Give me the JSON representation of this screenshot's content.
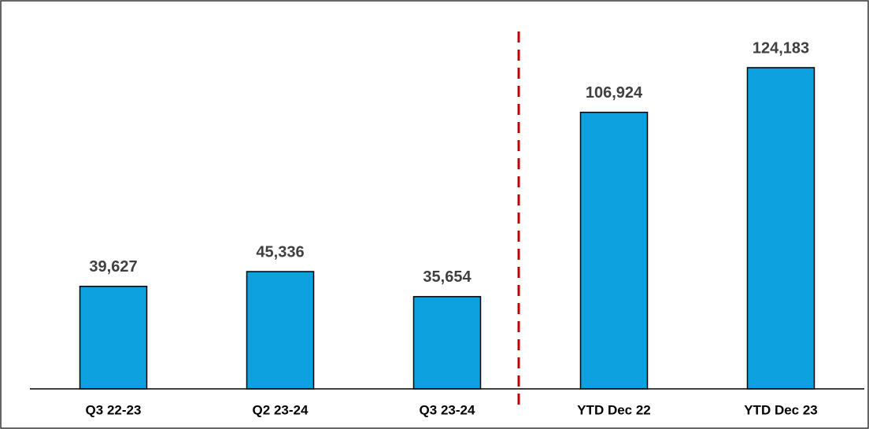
{
  "chart_data": {
    "type": "bar",
    "categories": [
      "Q3 22-23",
      "Q2 23-24",
      "Q3 23-24",
      "YTD Dec 22",
      "YTD Dec 23"
    ],
    "values": [
      39627,
      45336,
      35654,
      106924,
      124183
    ],
    "value_labels": [
      "39,627",
      "45,336",
      "35,654",
      "106,924",
      "124,183"
    ],
    "color": "#0ea1e0",
    "ylim": [
      0,
      140000
    ]
  }
}
